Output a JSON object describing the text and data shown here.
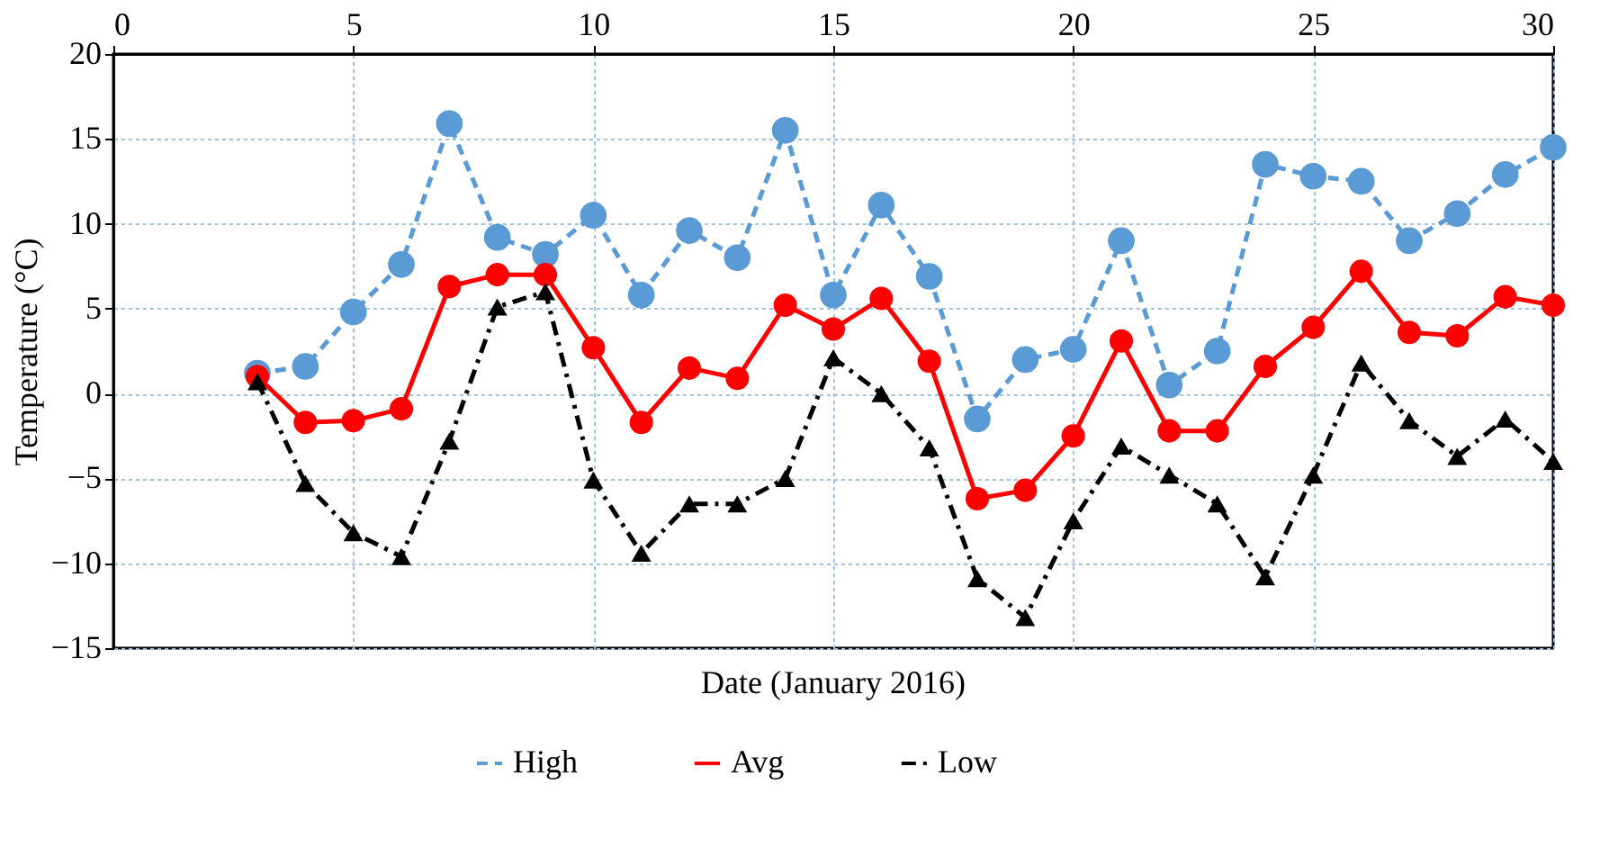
{
  "chart_data": {
    "type": "line",
    "xlabel": "Date (January 2016)",
    "ylabel": "Temperature (°C)",
    "x": [
      3,
      4,
      5,
      6,
      7,
      8,
      9,
      10,
      11,
      12,
      13,
      14,
      15,
      16,
      17,
      18,
      19,
      20,
      21,
      22,
      23,
      24,
      25,
      26,
      27,
      28,
      29,
      30
    ],
    "series": [
      {
        "name": "High",
        "color": "#5b9bd5",
        "line_style": "dashed",
        "marker": "circle",
        "values": [
          1.2,
          1.6,
          4.8,
          7.6,
          15.9,
          9.2,
          8.2,
          10.5,
          5.8,
          9.6,
          8.0,
          15.5,
          5.8,
          11.1,
          6.9,
          -1.5,
          2.0,
          2.6,
          9.0,
          0.5,
          2.5,
          13.5,
          12.8,
          12.5,
          9.0,
          10.6,
          12.9,
          14.5
        ]
      },
      {
        "name": "Avg",
        "color": "#ff0000",
        "line_style": "solid",
        "marker": "circle",
        "values": [
          1.0,
          -1.7,
          -1.6,
          -0.9,
          6.3,
          7.0,
          7.0,
          2.7,
          -1.7,
          1.5,
          0.9,
          5.2,
          3.8,
          5.6,
          1.9,
          -6.2,
          -5.7,
          -2.5,
          3.1,
          -2.2,
          -2.2,
          1.6,
          3.9,
          7.2,
          3.6,
          3.4,
          5.7,
          5.2
        ]
      },
      {
        "name": "Low",
        "color": "#000000",
        "line_style": "dashdot",
        "marker": "triangle",
        "values": [
          0.7,
          -5.3,
          -8.2,
          -9.6,
          -2.8,
          5.1,
          6.0,
          -5.1,
          -9.4,
          -6.5,
          -6.5,
          -5.0,
          2.1,
          0.0,
          -3.2,
          -10.9,
          -13.2,
          -7.5,
          -3.1,
          -4.8,
          -6.5,
          -10.8,
          -4.8,
          1.8,
          -1.6,
          -3.7,
          -1.5,
          -4.0
        ]
      }
    ],
    "xlim": [
      0,
      30
    ],
    "xticks": [
      0,
      5,
      10,
      15,
      20,
      25,
      30
    ],
    "ylim": [
      -15,
      20
    ],
    "yticks": [
      -15,
      -10,
      -5,
      0,
      5,
      10,
      15,
      20
    ],
    "grid": true,
    "legend": "bottom"
  }
}
